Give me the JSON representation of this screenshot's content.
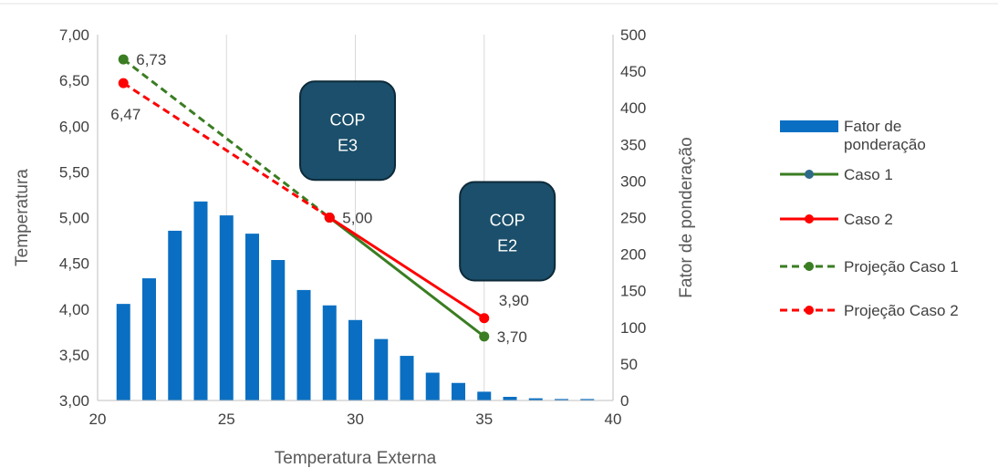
{
  "chart_data": {
    "type": "bar+line",
    "xlabel": "Temperatura Externa",
    "ylabel_left": "Temperatura",
    "ylabel_right": "Fator de ponderação",
    "xlim": [
      20,
      40
    ],
    "xticks": [
      "20",
      "25",
      "30",
      "35",
      "40"
    ],
    "ylim_left": [
      3.0,
      7.0
    ],
    "yticks_left": [
      "3,00",
      "3,50",
      "4,00",
      "4,50",
      "5,00",
      "5,50",
      "6,00",
      "6,50",
      "7,00"
    ],
    "ylim_right": [
      0,
      500
    ],
    "yticks_right": [
      "0",
      "50",
      "100",
      "150",
      "200",
      "250",
      "300",
      "350",
      "400",
      "450",
      "500"
    ],
    "grid": "vertical",
    "legend_position": "right",
    "colors": {
      "bars": "#0a6fc2",
      "caso1": "#3a7d22",
      "caso2": "#ff0000",
      "box_fill": "#1b4f6b",
      "box_border": "#0d2a3a"
    },
    "bars": {
      "name": "Fator de ponderação",
      "x": [
        21,
        22,
        23,
        24,
        25,
        26,
        27,
        28,
        29,
        30,
        31,
        32,
        33,
        34,
        35,
        36,
        37,
        38,
        39
      ],
      "values": [
        132,
        167,
        232,
        272,
        253,
        228,
        192,
        151,
        130,
        110,
        84,
        61,
        38,
        24,
        12,
        5,
        3,
        2,
        2
      ]
    },
    "series": [
      {
        "name": "Caso 1",
        "style": "solid",
        "color": "#3a7d22",
        "points": [
          [
            29,
            5.0
          ],
          [
            35,
            3.7
          ]
        ]
      },
      {
        "name": "Caso 2",
        "style": "solid",
        "color": "#ff0000",
        "points": [
          [
            29,
            5.0
          ],
          [
            35,
            3.9
          ]
        ]
      },
      {
        "name": "Projeção Caso 1",
        "style": "dashed",
        "color": "#3a7d22",
        "points": [
          [
            21,
            6.73
          ],
          [
            29,
            5.0
          ]
        ]
      },
      {
        "name": "Projeção Caso 2",
        "style": "dashed",
        "color": "#ff0000",
        "points": [
          [
            21,
            6.47
          ],
          [
            29,
            5.0
          ]
        ]
      }
    ],
    "data_labels": [
      {
        "text": "6,73",
        "x": 21,
        "y": 6.73,
        "anchor": "right"
      },
      {
        "text": "6,47",
        "x": 21,
        "y": 6.47,
        "anchor": "below"
      },
      {
        "text": "5,00",
        "x": 29,
        "y": 5.0,
        "anchor": "right"
      },
      {
        "text": "3,90",
        "x": 35,
        "y": 3.9,
        "anchor": "above-right"
      },
      {
        "text": "3,70",
        "x": 35,
        "y": 3.7,
        "anchor": "right"
      }
    ],
    "legend": [
      {
        "label_lines": [
          "Fator de",
          "ponderação"
        ],
        "kind": "bar",
        "color": "#0a6fc2"
      },
      {
        "label_lines": [
          "Caso 1"
        ],
        "kind": "line",
        "color": "#3a7d22",
        "dashed": false,
        "marker_color": "#2e6b8a"
      },
      {
        "label_lines": [
          "Caso 2"
        ],
        "kind": "line",
        "color": "#ff0000",
        "dashed": false,
        "marker_color": "#ff0000"
      },
      {
        "label_lines": [
          "Projeção Caso 1"
        ],
        "kind": "line",
        "color": "#3a7d22",
        "dashed": true,
        "marker_color": "#3a7d22"
      },
      {
        "label_lines": [
          "Projeção Caso 2"
        ],
        "kind": "line",
        "color": "#ff0000",
        "dashed": true,
        "marker_color": "#ff0000"
      }
    ],
    "annotations": [
      {
        "lines": [
          "COP",
          "E3"
        ],
        "x": 29.7,
        "y": 5.95
      },
      {
        "lines": [
          "COP",
          "E2"
        ],
        "x": 35.9,
        "y": 4.85
      }
    ]
  }
}
